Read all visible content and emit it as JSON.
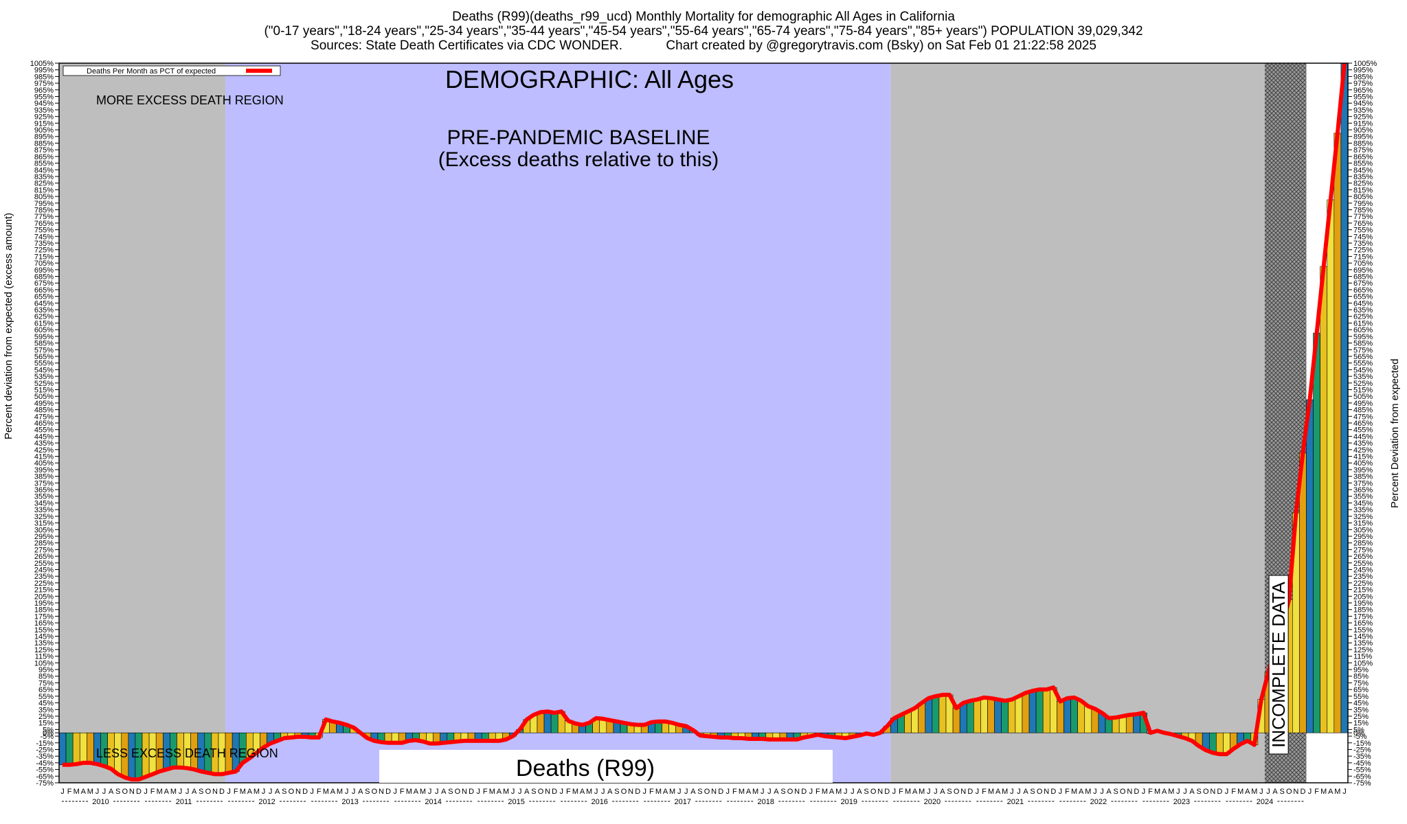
{
  "header": {
    "line1": "Deaths (R99)(deaths_r99_ucd) Monthly Mortality for demographic All Ages in California",
    "line2": "(\"0-17 years\",\"18-24 years\",\"25-34 years\",\"35-44 years\",\"45-54 years\",\"55-64 years\",\"65-74 years\",\"75-84 years\",\"85+ years\") POPULATION 39,029,342",
    "line3": "Sources: State Death Certificates via CDC WONDER.            Chart created by @gregorytravis.com (Bsky) on Sat Feb 01 21:22:58 2025"
  },
  "chart_data": {
    "type": "bar",
    "title": "DEMOGRAPHIC: All Ages",
    "ylabel_left": "Percent deviation from expected (excess amount)",
    "ylabel_right": "Percent Deviation from expected",
    "ylim": [
      -75,
      1005
    ],
    "yticks": [
      -75,
      -65,
      -55,
      -45,
      -35,
      -25,
      -15,
      -5,
      0,
      5,
      15,
      25,
      35,
      45,
      55,
      65,
      75,
      85,
      95,
      105,
      115,
      125,
      135,
      145,
      155,
      165,
      175,
      185,
      195,
      205,
      215,
      225,
      235,
      245,
      255,
      265,
      275,
      285,
      295,
      305,
      315,
      325,
      335,
      345,
      355,
      365,
      375,
      385,
      395,
      405,
      415,
      425,
      435,
      445,
      455,
      465,
      475,
      485,
      495,
      505,
      515,
      525,
      535,
      545,
      555,
      565,
      575,
      585,
      595,
      605,
      615,
      625,
      635,
      645,
      655,
      665,
      675,
      685,
      695,
      705,
      715,
      725,
      735,
      745,
      755,
      765,
      775,
      785,
      795,
      805,
      815,
      825,
      835,
      845,
      855,
      865,
      875,
      885,
      895,
      905,
      915,
      925,
      935,
      945,
      955,
      965,
      975,
      985,
      995,
      1005
    ],
    "legend": "Deaths Per Month as PCT of expected",
    "legend_position": "top-left",
    "line_color": "#ff0000",
    "bar_colors": [
      "#1f77b4",
      "#1a9a6c",
      "#e8c020",
      "#f0e040",
      "#e0a010"
    ],
    "month_letters": [
      "J",
      "F",
      "M",
      "A",
      "M",
      "J",
      "J",
      "A",
      "S",
      "O",
      "N",
      "D"
    ],
    "years": [
      "2010",
      "2011",
      "2012",
      "2013",
      "2014",
      "2015",
      "2016",
      "2017",
      "2018",
      "2019",
      "2020",
      "2021",
      "2022",
      "2023",
      "2024"
    ],
    "values": [
      -48,
      -48,
      -47,
      -45,
      -45,
      -47,
      -50,
      -54,
      -62,
      -67,
      -70,
      -70,
      -66,
      -62,
      -58,
      -55,
      -52,
      -52,
      -53,
      -55,
      -58,
      -60,
      -62,
      -62,
      -60,
      -58,
      -45,
      -38,
      -30,
      -22,
      -16,
      -12,
      -8,
      -7,
      -6,
      -6,
      -7,
      -7,
      20,
      17,
      15,
      12,
      8,
      0,
      -8,
      -12,
      -14,
      -15,
      -15,
      -15,
      -12,
      -11,
      -13,
      -16,
      -16,
      -15,
      -14,
      -13,
      -12,
      -12,
      -12,
      -12,
      -12,
      -12,
      -10,
      -5,
      5,
      20,
      27,
      31,
      32,
      30,
      32,
      18,
      14,
      12,
      15,
      22,
      21,
      19,
      17,
      15,
      13,
      12,
      12,
      16,
      17,
      17,
      15,
      12,
      10,
      4,
      -4,
      -5,
      -6,
      -7,
      -7,
      -8,
      -8,
      -9,
      -9,
      -9,
      -10,
      -10,
      -10,
      -10,
      -10,
      -7,
      -5,
      -3,
      -5,
      -6,
      -7,
      -8,
      -6,
      -4,
      -1,
      -3,
      0,
      10,
      22,
      27,
      32,
      37,
      45,
      52,
      55,
      57,
      57,
      37,
      45,
      48,
      50,
      53,
      52,
      50,
      48,
      50,
      55,
      60,
      63,
      65,
      65,
      68,
      47,
      52,
      53,
      48,
      40,
      36,
      30,
      22,
      23,
      25,
      27,
      28,
      30,
      0,
      3,
      0,
      -2,
      -5,
      -8,
      -12,
      -20,
      -26,
      -30,
      -32,
      -32,
      -24,
      -17,
      -12,
      -18,
      50,
      90,
      130,
      160,
      200,
      330,
      420,
      500,
      600,
      700,
      800,
      900,
      1005
    ],
    "regions": [
      {
        "label": "MORE EXCESS DEATH REGION",
        "start": 0,
        "end": 24,
        "color": "#bebebe"
      },
      {
        "label": "PRE-PANDEMIC BASELINE",
        "sublabel": "(Excess deaths relative to this)",
        "start": 24,
        "end": 120,
        "color": "#bdbdff"
      },
      {
        "label": "",
        "start": 120,
        "end": 174,
        "color": "#bebebe"
      },
      {
        "label": "INCOMPLETE DATA",
        "start": 174,
        "end": 180,
        "color": "#888888"
      }
    ],
    "region_bottom_label": "LESS EXCESS DEATH REGION",
    "series_label": "Deaths (R99)"
  }
}
